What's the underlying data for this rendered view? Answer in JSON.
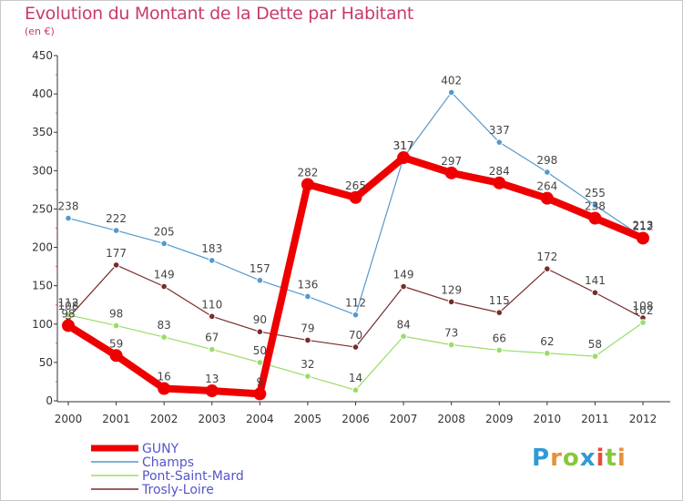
{
  "chart_data": {
    "type": "line",
    "title": "Evolution du Montant de la Dette par Habitant",
    "ylabel": "(en €)",
    "xlabel": "",
    "x": [
      "2000",
      "2001",
      "2002",
      "2003",
      "2004",
      "2005",
      "2006",
      "2007",
      "2008",
      "2009",
      "2010",
      "2011",
      "2012"
    ],
    "ylim": [
      0,
      450
    ],
    "yticks": [
      0,
      50,
      100,
      150,
      200,
      250,
      300,
      350,
      400,
      450
    ],
    "grid": false,
    "legend_position": "bottom-left",
    "series": [
      {
        "name": "Trosly-Loire",
        "color": "#7a2a2a",
        "values": [
          108,
          177,
          149,
          110,
          90,
          79,
          70,
          149,
          129,
          115,
          172,
          141,
          108
        ]
      },
      {
        "name": "Pont-Saint-Mard",
        "color": "#99dd66",
        "values": [
          112,
          98,
          83,
          67,
          50,
          32,
          14,
          84,
          73,
          66,
          62,
          58,
          102
        ]
      },
      {
        "name": "Champs",
        "color": "#5599cc",
        "values": [
          238,
          222,
          205,
          183,
          157,
          136,
          112,
          317,
          402,
          337,
          298,
          255,
          213
        ]
      },
      {
        "name": "GUNY",
        "color": "#ee0000",
        "values": [
          98,
          59,
          16,
          13,
          9,
          282,
          265,
          317,
          297,
          284,
          264,
          238,
          212
        ]
      }
    ]
  },
  "logo": {
    "letters": [
      "P",
      "r",
      "o",
      "x",
      "i",
      "t",
      "i"
    ],
    "colors": [
      "#2f9ad7",
      "#e8913a",
      "#87c83b",
      "#2f9ad7",
      "#e84c3d",
      "#87c83b",
      "#e8913a"
    ]
  }
}
